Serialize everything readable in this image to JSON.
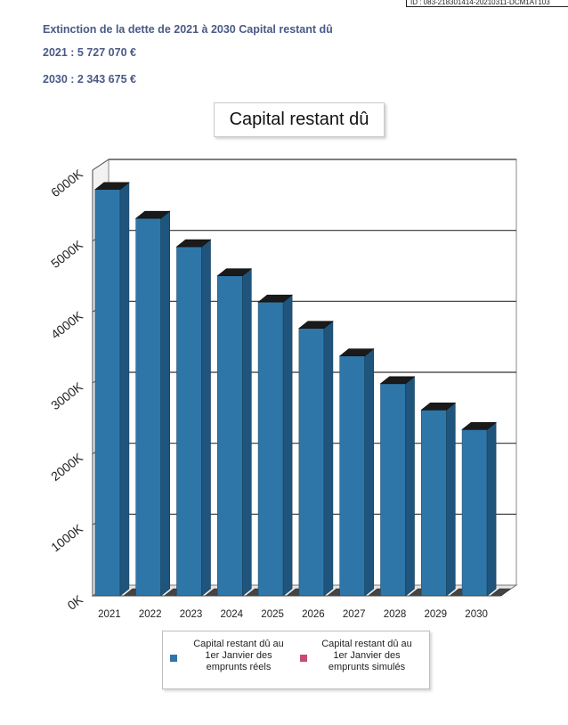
{
  "header": {
    "id_text": "ID : 083-218301414-20210311-DCM1AT103"
  },
  "summary": {
    "title": "Extinction de la dette de 2021 à 2030 Capital restant dû",
    "line_2021": "2021 : 5 727 070 €",
    "line_2030": "2030 : 2 343 675 €"
  },
  "colors": {
    "series_real": "#2f76a8",
    "series_simulated": "#c9487a",
    "text_summary": "#4a5a86"
  },
  "chart_data": {
    "type": "bar",
    "title": "Capital restant dû",
    "categories": [
      "2021",
      "2022",
      "2023",
      "2024",
      "2025",
      "2026",
      "2027",
      "2028",
      "2029",
      "2030"
    ],
    "series": [
      {
        "name": "Capital restant dû au 1er Janvier des emprunts réels",
        "values": [
          5727070,
          5320000,
          4920000,
          4510000,
          4140000,
          3770000,
          3380000,
          2990000,
          2620000,
          2343675
        ]
      },
      {
        "name": "Capital restant dû au 1er Janvier des emprunts simulés",
        "values": [
          0,
          0,
          0,
          0,
          0,
          0,
          0,
          0,
          0,
          0
        ]
      }
    ],
    "y_ticks": [
      "0K",
      "1000K",
      "2000K",
      "3000K",
      "4000K",
      "5000K",
      "6000K"
    ],
    "ylim": [
      0,
      6000000
    ],
    "grid": true,
    "legend_position": "bottom",
    "three_d": true
  },
  "legend": {
    "item_real": "Capital restant dû au 1er Janvier des emprunts réels",
    "item_simulated": "Capital restant dû au 1er Janvier des emprunts simulés"
  }
}
